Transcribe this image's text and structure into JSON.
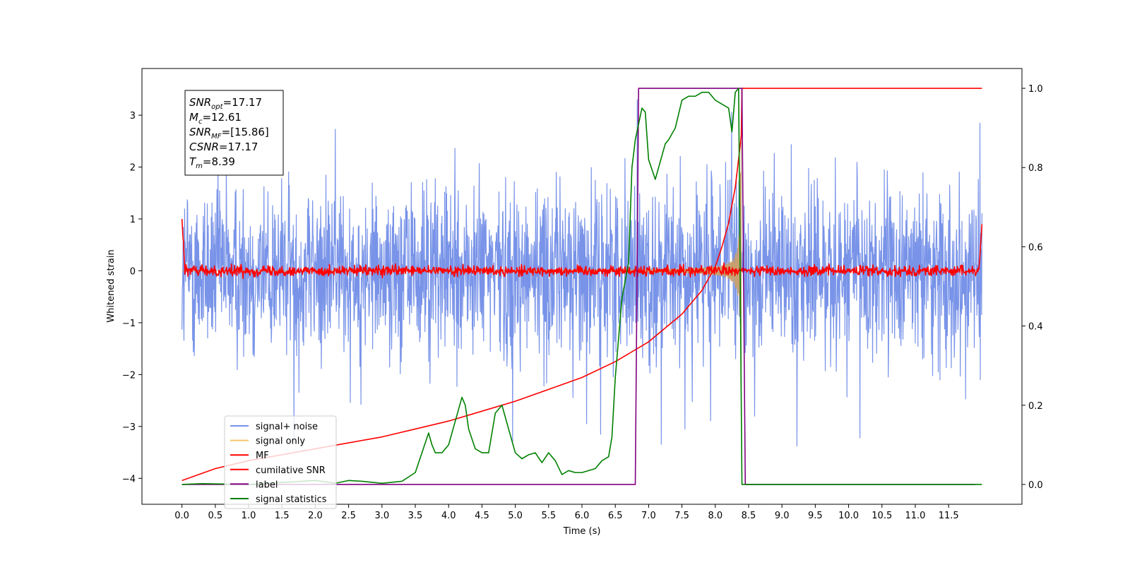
{
  "chart_data": {
    "type": "line",
    "title": "",
    "xlabel": "Time (s)",
    "ylabel": "Whitened strain",
    "xlim": [
      -0.6,
      12.6
    ],
    "ylim": [
      -4.5,
      3.9
    ],
    "ylim_right": [
      -0.05,
      1.05
    ],
    "x_ticks": [
      0.0,
      0.5,
      1.0,
      1.5,
      2.0,
      2.5,
      3.0,
      3.5,
      4.0,
      4.5,
      5.0,
      5.5,
      6.0,
      6.5,
      7.0,
      7.5,
      8.0,
      8.5,
      9.0,
      9.5,
      10.0,
      10.5,
      11.0,
      11.5
    ],
    "x_tick_labels": [
      "0.0",
      "0.5",
      "1.0",
      "1.5",
      "2.0",
      "2.5",
      "3.0",
      "3.5",
      "4.0",
      "4.5",
      "5.0",
      "5.5",
      "6.0",
      "6.5",
      "7.0",
      "7.5",
      "8.0",
      "8.5",
      "9.0",
      "9.5",
      "10.0",
      "10.5",
      "11.0",
      "11.5"
    ],
    "y_ticks": [
      -4,
      -3,
      -2,
      -1,
      0,
      1,
      2,
      3
    ],
    "y_tick_labels": [
      "−4",
      "−3",
      "−2",
      "−1",
      "0",
      "1",
      "2",
      "3"
    ],
    "y_ticks_right": [
      0.0,
      0.2,
      0.4,
      0.6,
      0.8,
      1.0
    ],
    "y_tick_labels_right": [
      "0.0",
      "0.2",
      "0.4",
      "0.6",
      "0.8",
      "1.0"
    ],
    "grid": false,
    "legend_position": "lower-left",
    "stats_box": {
      "snr_opt": {
        "sym": "SNR",
        "sub": "opt",
        "value": "=17.17"
      },
      "mc": {
        "sym": "M",
        "sub": "c",
        "value": "=12.61"
      },
      "snr_mf": {
        "sym": "SNR",
        "sub": "MF",
        "value": "=[15.86]"
      },
      "csnr": {
        "sym": "CSNR",
        "sub": "",
        "value": "=17.17"
      },
      "tm": {
        "sym": "T",
        "sub": "m",
        "value": "=8.39"
      }
    },
    "series": [
      {
        "name": "signal+ noise",
        "axis": "left",
        "color": "#7893e8",
        "kind": "noise",
        "x_range": [
          0.0,
          12.0
        ],
        "amplitude_envelope": [
          -2.6,
          2.4
        ],
        "extremes": [
          -4.15,
          3.3
        ]
      },
      {
        "name": "signal only",
        "axis": "left",
        "color": "#f5c66a",
        "kind": "chirp",
        "x_range": [
          0.0,
          8.39
        ],
        "merger_time": 8.39,
        "peak_amplitude": 2.5
      },
      {
        "name": "MF",
        "axis": "left",
        "color": "#ff0000",
        "kind": "noise_small",
        "x_range": [
          0.0,
          12.0
        ],
        "amplitude_envelope": [
          -0.15,
          0.15
        ],
        "start_value": 1.0,
        "end_value": 0.9
      },
      {
        "name": "cumilative SNR",
        "axis": "right",
        "color": "#ff0000",
        "kind": "line",
        "x": [
          0.0,
          0.5,
          1.0,
          1.5,
          2.0,
          2.5,
          3.0,
          3.5,
          4.0,
          4.5,
          5.0,
          5.5,
          6.0,
          6.5,
          7.0,
          7.5,
          7.8,
          8.0,
          8.1,
          8.2,
          8.3,
          8.39,
          8.4,
          12.0
        ],
        "y": [
          0.01,
          0.04,
          0.06,
          0.075,
          0.09,
          0.105,
          0.12,
          0.14,
          0.16,
          0.185,
          0.21,
          0.24,
          0.27,
          0.31,
          0.36,
          0.43,
          0.49,
          0.55,
          0.6,
          0.66,
          0.75,
          0.88,
          1.0,
          1.0
        ]
      },
      {
        "name": "label",
        "axis": "right",
        "color": "#800080",
        "kind": "line",
        "x": [
          0.0,
          6.8,
          6.85,
          8.4,
          8.45,
          11.9
        ],
        "y": [
          0.0,
          0.0,
          1.0,
          1.0,
          0.0,
          0.0
        ]
      },
      {
        "name": "signal statistics",
        "axis": "right",
        "color": "#008000",
        "kind": "line",
        "x": [
          0.0,
          0.3,
          1.0,
          1.5,
          2.0,
          2.3,
          2.5,
          2.7,
          3.0,
          3.3,
          3.5,
          3.6,
          3.7,
          3.75,
          3.8,
          3.9,
          4.0,
          4.1,
          4.2,
          4.25,
          4.3,
          4.4,
          4.5,
          4.6,
          4.7,
          4.8,
          4.85,
          4.9,
          5.0,
          5.1,
          5.2,
          5.3,
          5.4,
          5.5,
          5.6,
          5.7,
          5.8,
          5.9,
          6.0,
          6.2,
          6.3,
          6.4,
          6.45,
          6.5,
          6.6,
          6.7,
          6.75,
          6.8,
          6.9,
          6.95,
          7.0,
          7.1,
          7.2,
          7.25,
          7.3,
          7.4,
          7.5,
          7.6,
          7.7,
          7.8,
          7.9,
          8.0,
          8.1,
          8.2,
          8.25,
          8.3,
          8.35,
          8.4,
          8.45,
          12.0
        ],
        "y": [
          0.0,
          0.002,
          0.0,
          0.005,
          0.01,
          0.003,
          0.01,
          0.008,
          0.003,
          0.008,
          0.03,
          0.08,
          0.13,
          0.1,
          0.08,
          0.08,
          0.1,
          0.16,
          0.22,
          0.2,
          0.14,
          0.09,
          0.08,
          0.08,
          0.18,
          0.2,
          0.17,
          0.14,
          0.08,
          0.065,
          0.075,
          0.08,
          0.055,
          0.08,
          0.06,
          0.025,
          0.035,
          0.03,
          0.03,
          0.04,
          0.06,
          0.07,
          0.12,
          0.27,
          0.47,
          0.56,
          0.8,
          0.87,
          0.95,
          0.94,
          0.82,
          0.77,
          0.83,
          0.86,
          0.87,
          0.9,
          0.97,
          0.98,
          0.98,
          0.99,
          0.99,
          0.97,
          0.96,
          0.95,
          0.89,
          0.99,
          1.0,
          0.0,
          0.0,
          0.0
        ]
      }
    ]
  }
}
